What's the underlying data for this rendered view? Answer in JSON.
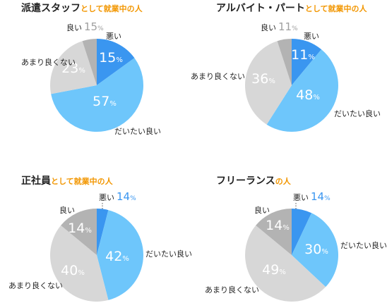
{
  "colors": {
    "good": "#3a96f0",
    "fair": "#6ec6fb",
    "notvery": "#d7d7d7",
    "bad": "#b3b3b3",
    "title_sub": "#f29600",
    "accent_text": "#3a96f0",
    "muted_text": "#a0a0a0"
  },
  "chart_data": [
    {
      "type": "pie",
      "title": "派遣スタッフ",
      "subtitle": "として就業中の人",
      "categories": [
        "良い",
        "だいたい良い",
        "あまり良くない",
        "悪い"
      ],
      "values": [
        15,
        57,
        23,
        5
      ],
      "value_suffix": "%"
    },
    {
      "type": "pie",
      "title": "アルバイト・パート",
      "subtitle": "として就業中の人",
      "categories": [
        "良い",
        "だいたい良い",
        "あまり良くない",
        "悪い"
      ],
      "values": [
        11,
        48,
        36,
        5
      ],
      "value_suffix": "%"
    },
    {
      "type": "pie",
      "title": "正社員",
      "subtitle": "として就業中の人",
      "categories": [
        "良い",
        "だいたい良い",
        "あまり良くない",
        "悪い"
      ],
      "values": [
        4,
        42,
        40,
        14
      ],
      "value_suffix": "%"
    },
    {
      "type": "pie",
      "title": "フリーランス",
      "subtitle": "の人",
      "categories": [
        "良い",
        "だいたい良い",
        "あまり良くない",
        "悪い"
      ],
      "values": [
        7,
        30,
        49,
        14
      ],
      "value_suffix": "%"
    }
  ]
}
